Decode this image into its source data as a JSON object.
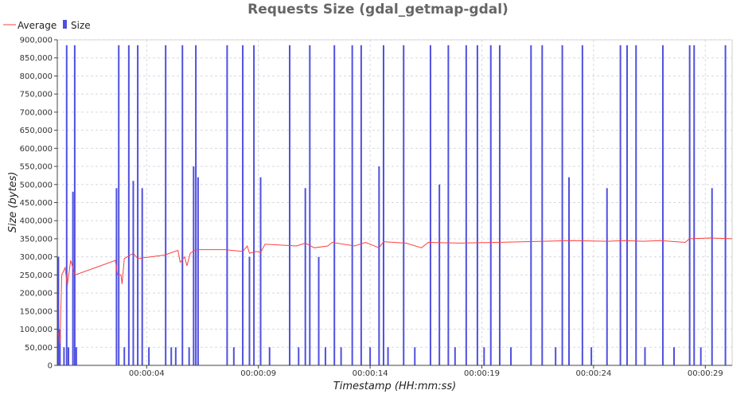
{
  "chart_data": {
    "type": "bar",
    "title": "Requests Size (gdal_getmap-gdal)",
    "xlabel": "Timestamp (HH:mm:ss)",
    "ylabel": "Size (bytes)",
    "ylim": [
      0,
      900000
    ],
    "y_ticks": [
      "0",
      "50,000",
      "100,000",
      "150,000",
      "200,000",
      "250,000",
      "300,000",
      "350,000",
      "400,000",
      "450,000",
      "500,000",
      "550,000",
      "600,000",
      "650,000",
      "700,000",
      "750,000",
      "800,000",
      "850,000",
      "900,000"
    ],
    "x_ticks": [
      "00:00:04",
      "00:00:09",
      "00:00:14",
      "00:00:19",
      "00:00:24",
      "00:00:29"
    ],
    "x_tick_seconds": [
      4,
      9,
      14,
      19,
      24,
      29
    ],
    "xlim_seconds": [
      0,
      30.2
    ],
    "grid": true,
    "legend": "top-left",
    "series": [
      {
        "name": "Average",
        "kind": "line",
        "color": "#ff4040",
        "points": [
          [
            0.05,
            90000
          ],
          [
            0.12,
            60000
          ],
          [
            0.2,
            250000
          ],
          [
            0.35,
            270000
          ],
          [
            0.45,
            220000
          ],
          [
            0.6,
            290000
          ],
          [
            0.8,
            250000
          ],
          [
            2.6,
            290000
          ],
          [
            2.7,
            250000
          ],
          [
            2.85,
            250000
          ],
          [
            2.9,
            225000
          ],
          [
            3.0,
            295000
          ],
          [
            3.4,
            310000
          ],
          [
            3.6,
            295000
          ],
          [
            4.8,
            305000
          ],
          [
            5.4,
            318000
          ],
          [
            5.5,
            285000
          ],
          [
            5.7,
            300000
          ],
          [
            5.8,
            275000
          ],
          [
            5.95,
            310000
          ],
          [
            6.2,
            320000
          ],
          [
            7.5,
            320000
          ],
          [
            8.3,
            315000
          ],
          [
            8.5,
            330000
          ],
          [
            8.6,
            310000
          ],
          [
            8.9,
            315000
          ],
          [
            9.1,
            312000
          ],
          [
            9.3,
            335000
          ],
          [
            10.7,
            330000
          ],
          [
            11.1,
            338000
          ],
          [
            11.5,
            325000
          ],
          [
            12.1,
            330000
          ],
          [
            12.3,
            340000
          ],
          [
            13.3,
            330000
          ],
          [
            13.8,
            340000
          ],
          [
            14.4,
            325000
          ],
          [
            14.6,
            342000
          ],
          [
            15.6,
            338000
          ],
          [
            16.3,
            325000
          ],
          [
            16.6,
            340000
          ],
          [
            18.0,
            338000
          ],
          [
            19.6,
            340000
          ],
          [
            21.0,
            342000
          ],
          [
            23.0,
            345000
          ],
          [
            24.6,
            343000
          ],
          [
            25.4,
            345000
          ],
          [
            26.2,
            343000
          ],
          [
            27.0,
            345000
          ],
          [
            28.1,
            340000
          ],
          [
            28.3,
            350000
          ],
          [
            29.2,
            352000
          ],
          [
            30.2,
            350000
          ]
        ]
      },
      {
        "name": "Size",
        "kind": "bar",
        "color": "#5050e0",
        "values": [
          [
            0.05,
            300000
          ],
          [
            0.12,
            100000
          ],
          [
            0.3,
            50000
          ],
          [
            0.42,
            885000
          ],
          [
            0.5,
            50000
          ],
          [
            0.7,
            480000
          ],
          [
            0.78,
            885000
          ],
          [
            0.85,
            50000
          ],
          [
            2.65,
            490000
          ],
          [
            2.75,
            885000
          ],
          [
            3.0,
            50000
          ],
          [
            3.2,
            885000
          ],
          [
            3.4,
            510000
          ],
          [
            3.6,
            885000
          ],
          [
            3.8,
            490000
          ],
          [
            4.1,
            50000
          ],
          [
            4.85,
            885000
          ],
          [
            5.1,
            50000
          ],
          [
            5.3,
            50000
          ],
          [
            5.6,
            885000
          ],
          [
            5.9,
            50000
          ],
          [
            6.1,
            550000
          ],
          [
            6.2,
            885000
          ],
          [
            6.3,
            520000
          ],
          [
            7.6,
            885000
          ],
          [
            7.9,
            50000
          ],
          [
            8.3,
            885000
          ],
          [
            8.6,
            300000
          ],
          [
            8.8,
            885000
          ],
          [
            9.1,
            520000
          ],
          [
            9.5,
            50000
          ],
          [
            10.4,
            885000
          ],
          [
            10.8,
            50000
          ],
          [
            11.1,
            490000
          ],
          [
            11.3,
            885000
          ],
          [
            11.7,
            300000
          ],
          [
            12.0,
            50000
          ],
          [
            12.4,
            885000
          ],
          [
            12.7,
            50000
          ],
          [
            13.2,
            885000
          ],
          [
            13.6,
            885000
          ],
          [
            14.0,
            50000
          ],
          [
            14.4,
            550000
          ],
          [
            14.6,
            885000
          ],
          [
            14.8,
            50000
          ],
          [
            15.5,
            885000
          ],
          [
            16.0,
            50000
          ],
          [
            16.7,
            885000
          ],
          [
            17.1,
            500000
          ],
          [
            17.5,
            885000
          ],
          [
            17.8,
            50000
          ],
          [
            18.3,
            885000
          ],
          [
            18.8,
            885000
          ],
          [
            19.1,
            50000
          ],
          [
            19.4,
            885000
          ],
          [
            19.8,
            885000
          ],
          [
            20.3,
            50000
          ],
          [
            21.2,
            885000
          ],
          [
            21.7,
            885000
          ],
          [
            22.3,
            50000
          ],
          [
            22.6,
            885000
          ],
          [
            22.9,
            520000
          ],
          [
            23.5,
            885000
          ],
          [
            23.9,
            50000
          ],
          [
            24.6,
            490000
          ],
          [
            25.2,
            885000
          ],
          [
            25.5,
            885000
          ],
          [
            25.9,
            885000
          ],
          [
            26.3,
            50000
          ],
          [
            27.1,
            885000
          ],
          [
            27.6,
            50000
          ],
          [
            28.3,
            885000
          ],
          [
            28.5,
            885000
          ],
          [
            28.8,
            50000
          ],
          [
            29.3,
            490000
          ],
          [
            29.9,
            885000
          ]
        ]
      }
    ]
  }
}
